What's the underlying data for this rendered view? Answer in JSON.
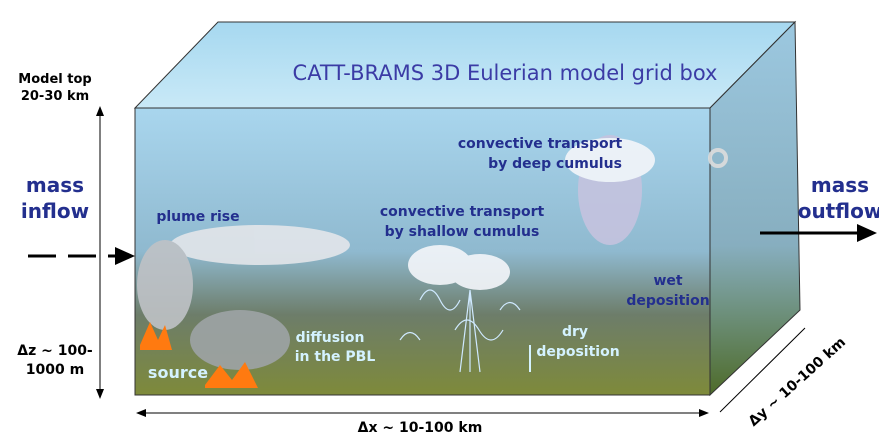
{
  "title": "CATT-BRAMS 3D Eulerian model grid box",
  "left": {
    "model_top": [
      "Model top",
      "20-30 km"
    ],
    "inflow": [
      "mass",
      "inflow"
    ],
    "dz": [
      "Δz ~ 100-",
      "1000 m"
    ]
  },
  "right": {
    "outflow": [
      "mass",
      "outflow"
    ]
  },
  "processes": {
    "deep": [
      "convective transport",
      "by deep cumulus"
    ],
    "plume": "plume rise",
    "shallow": [
      "convective transport",
      "by shallow cumulus"
    ],
    "wet": [
      "wet",
      "deposition"
    ],
    "diffusion": [
      "diffusion",
      "in the PBL"
    ],
    "dry": [
      "dry",
      "deposition"
    ],
    "source": "source"
  },
  "dims": {
    "dx": "Δx ~ 10-100 km",
    "dy": "Δy ~ 10-100 km"
  }
}
